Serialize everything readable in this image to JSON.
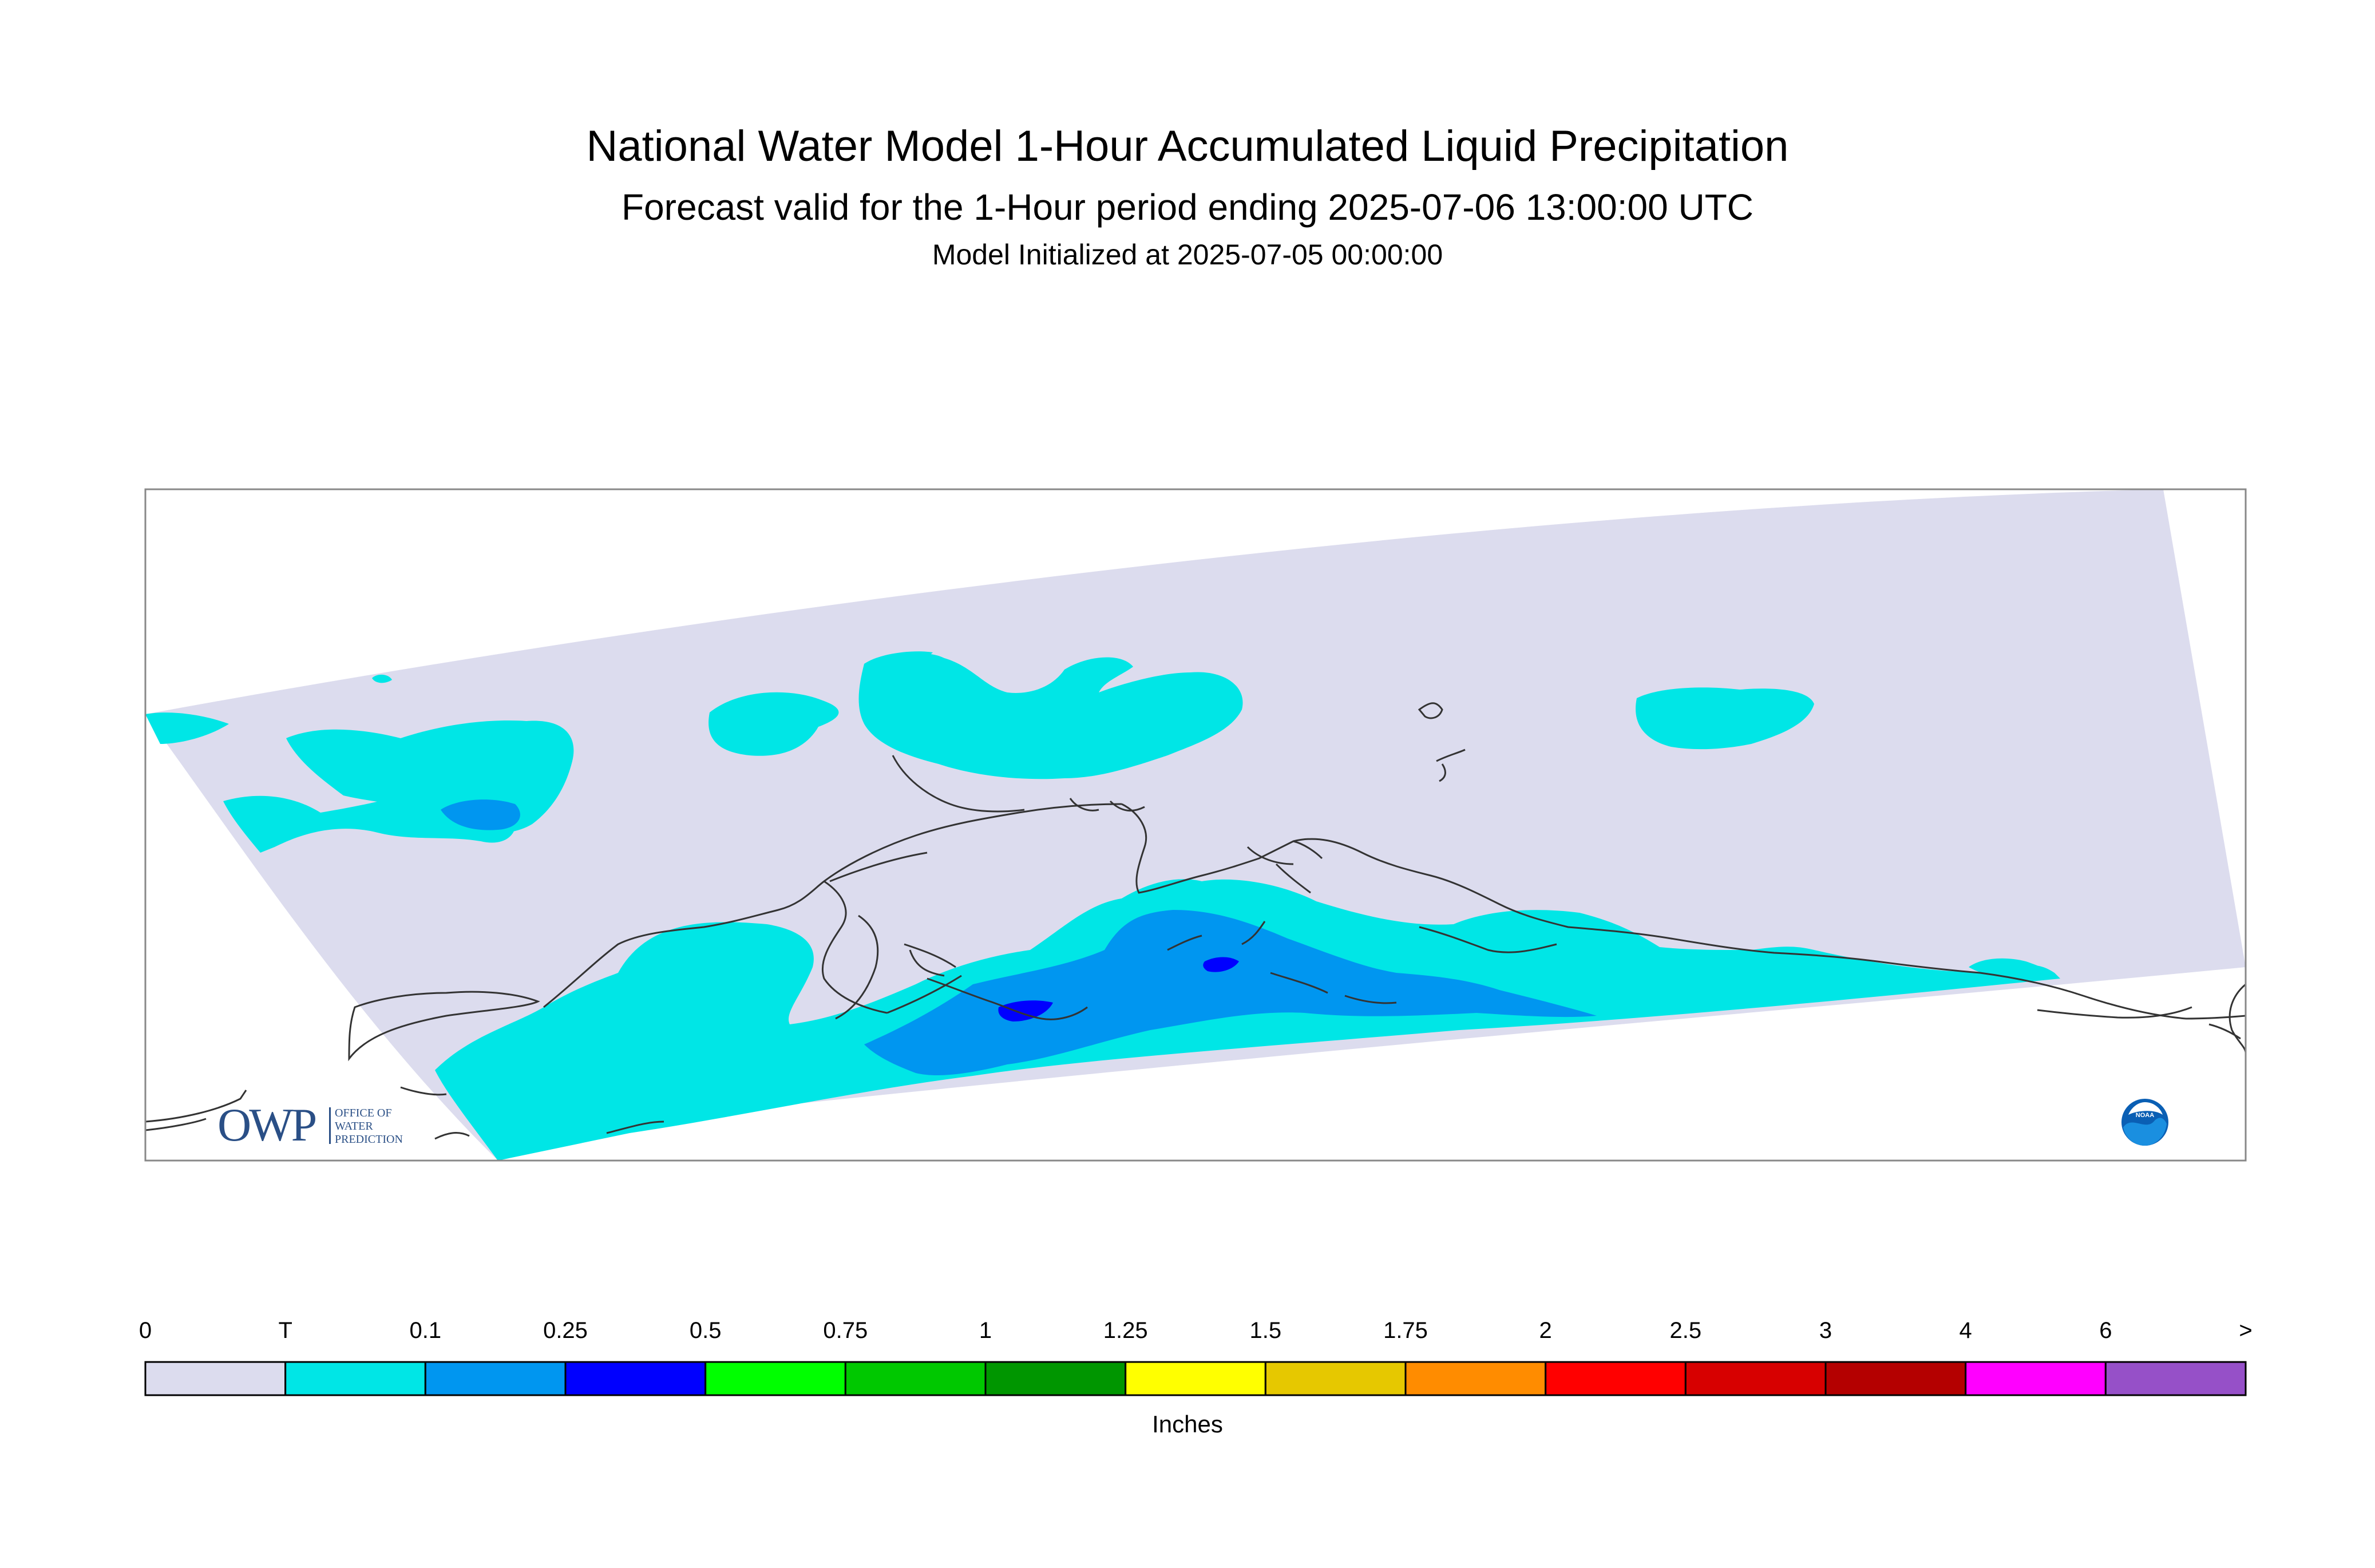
{
  "title": {
    "line1": "National Water Model 1-Hour Accumulated Liquid Precipitation",
    "line2": "Forecast valid for the 1-Hour period ending 2025-07-06 13:00:00 UTC",
    "line3": "Model Initialized at 2025-07-05 00:00:00"
  },
  "legend": {
    "units": "Inches",
    "labels": [
      "0",
      "T",
      "0.1",
      "0.25",
      "0.5",
      "0.75",
      "1",
      "1.25",
      "1.5",
      "1.75",
      "2",
      "2.5",
      "3",
      "4",
      "6",
      ">"
    ],
    "colors": [
      "#dcdcee",
      "#00e6e6",
      "#0096f0",
      "#0000ff",
      "#00ff00",
      "#00c800",
      "#009600",
      "#ffff00",
      "#e6c800",
      "#ff8c00",
      "#ff0000",
      "#d70000",
      "#b40000",
      "#ff00ff",
      "#9650c8"
    ]
  },
  "map_colors": {
    "background": "#dcdcee",
    "trace": "#00e6e6",
    "light": "#0096f0",
    "moderate": "#0000ff",
    "coastline": "#333333",
    "frame": "#888888"
  },
  "logos": {
    "owp_text": "OWP",
    "owp_line1": "OFFICE OF",
    "owp_line2": "WATER",
    "owp_line3": "PREDICTION",
    "noaa_text": "NOAA"
  }
}
